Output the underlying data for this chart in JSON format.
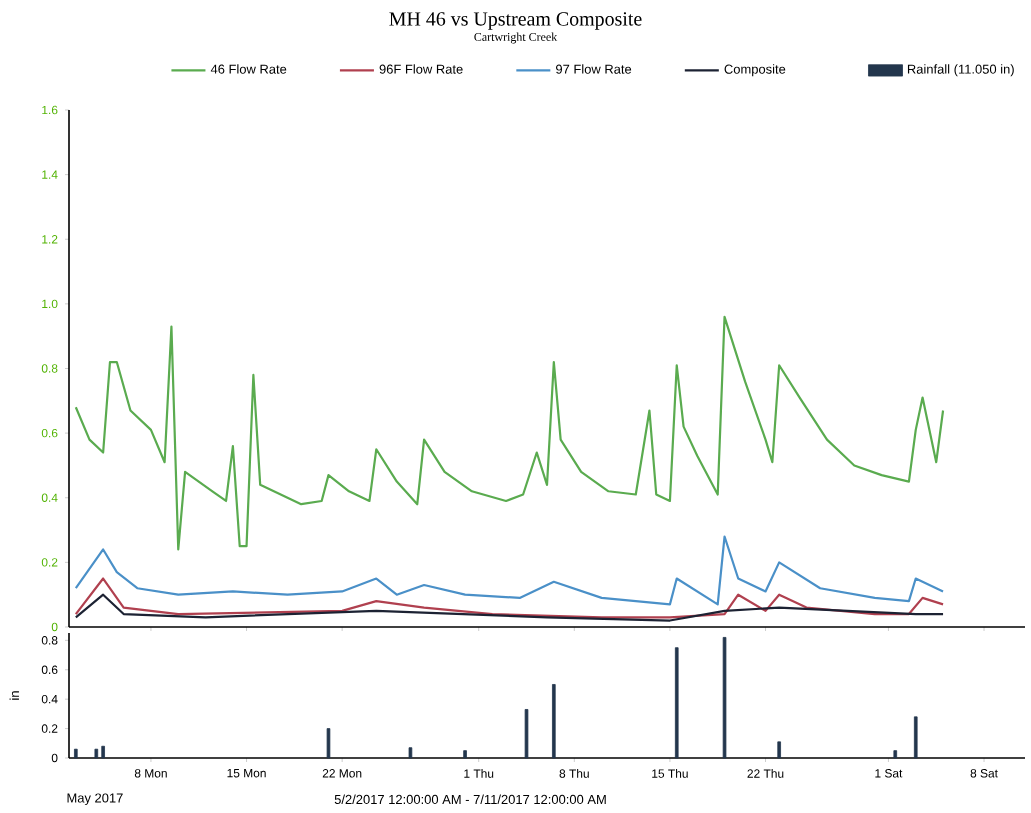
{
  "chart_data": [
    {
      "type": "line",
      "title": "MH 46 vs Upstream Composite",
      "subtitle": "Cartwright Creek",
      "legend": "top",
      "tick_labels": "y",
      "xlim": [
        "2017-05-02",
        "2017-07-11"
      ],
      "xticks": [
        {
          "value": "2017-05-08",
          "label": null
        },
        {
          "value": "2017-05-15",
          "label": null
        },
        {
          "value": "2017-05-22",
          "label": null
        },
        {
          "value": "2017-06-01",
          "label": null
        },
        {
          "value": "2017-06-08",
          "label": null
        },
        {
          "value": "2017-06-15",
          "label": null
        },
        {
          "value": "2017-06-22",
          "label": null
        },
        {
          "value": "2017-07-01",
          "label": null
        },
        {
          "value": "2017-07-08",
          "label": null
        }
      ],
      "ylim": [
        0,
        1.6
      ],
      "yticks": [
        0,
        0.2,
        0.4,
        0.6,
        0.8,
        {
          "value": 1,
          "label": "1.0"
        },
        1.2,
        1.4,
        1.6
      ],
      "series": [
        {
          "name": "46 Flow Rate",
          "color": "#5aab4f",
          "x": [
            "2017-05-02T12:00",
            "2017-05-03T12:00",
            "2017-05-04T12:00",
            "2017-05-05T00:00",
            "2017-05-05T12:00",
            "2017-05-06T12:00",
            "2017-05-08T00:00",
            "2017-05-09T00:00",
            "2017-05-09T12:00",
            "2017-05-10T00:00",
            "2017-05-10T12:00",
            "2017-05-12T12:00",
            "2017-05-13T12:00",
            "2017-05-14T00:00",
            "2017-05-14T12:00",
            "2017-05-15T00:00",
            "2017-05-15T12:00",
            "2017-05-16T00:00",
            "2017-05-17T12:00",
            "2017-05-19T00:00",
            "2017-05-20T12:00",
            "2017-05-21T00:00",
            "2017-05-22T12:00",
            "2017-05-24T00:00",
            "2017-05-24T12:00",
            "2017-05-26T00:00",
            "2017-05-27T12:00",
            "2017-05-28T00:00",
            "2017-05-29T12:00",
            "2017-05-31T12:00",
            "2017-06-03T00:00",
            "2017-06-04T06:00",
            "2017-06-05T06:00",
            "2017-06-06T00:00",
            "2017-06-06T12:00",
            "2017-06-07T00:00",
            "2017-06-08T12:00",
            "2017-06-10T12:00",
            "2017-06-12T12:00",
            "2017-06-13T12:00",
            "2017-06-14T00:00",
            "2017-06-15T00:00",
            "2017-06-15T12:00",
            "2017-06-16T00:00",
            "2017-06-17T00:00",
            "2017-06-18T12:00",
            "2017-06-19T00:00",
            "2017-06-20T12:00",
            "2017-06-22T00:00",
            "2017-06-22T12:00",
            "2017-06-23T00:00",
            "2017-06-24T12:00",
            "2017-06-26T12:00",
            "2017-06-28T12:00",
            "2017-06-30T12:00",
            "2017-07-02T12:00",
            "2017-07-03T00:00",
            "2017-07-03T12:00",
            "2017-07-04T00:00",
            "2017-07-04T12:00",
            "2017-07-05T00:00"
          ],
          "values": [
            0.68,
            0.58,
            0.54,
            0.82,
            0.82,
            0.67,
            0.61,
            0.51,
            0.93,
            0.24,
            0.48,
            0.42,
            0.39,
            0.56,
            0.25,
            0.25,
            0.78,
            0.44,
            0.41,
            0.38,
            0.39,
            0.47,
            0.42,
            0.39,
            0.55,
            0.45,
            0.38,
            0.58,
            0.48,
            0.42,
            0.39,
            0.41,
            0.54,
            0.44,
            0.82,
            0.58,
            0.48,
            0.42,
            0.41,
            0.67,
            0.41,
            0.39,
            0.81,
            0.62,
            0.53,
            0.41,
            0.96,
            0.76,
            0.58,
            0.51,
            0.81,
            0.71,
            0.58,
            0.5,
            0.47,
            0.45,
            0.61,
            0.71,
            0.61,
            0.51,
            0.67
          ]
        },
        {
          "name": "96F Flow Rate",
          "color": "#b0404f",
          "x": [
            "2017-05-02T12:00",
            "2017-05-04T12:00",
            "2017-05-06T00:00",
            "2017-05-10T00:00",
            "2017-05-22T00:00",
            "2017-05-24T12:00",
            "2017-05-28T00:00",
            "2017-06-02T00:00",
            "2017-06-10T00:00",
            "2017-06-15T00:00",
            "2017-06-19T00:00",
            "2017-06-20T00:00",
            "2017-06-22T00:00",
            "2017-06-23T00:00",
            "2017-06-25T00:00",
            "2017-06-30T00:00",
            "2017-07-02T12:00",
            "2017-07-03T12:00",
            "2017-07-05T00:00"
          ],
          "values": [
            0.04,
            0.15,
            0.06,
            0.04,
            0.05,
            0.08,
            0.06,
            0.04,
            0.03,
            0.03,
            0.04,
            0.1,
            0.05,
            0.1,
            0.06,
            0.04,
            0.04,
            0.09,
            0.07
          ]
        },
        {
          "name": "97 Flow Rate",
          "color": "#4a90c8",
          "x": [
            "2017-05-02T12:00",
            "2017-05-04T12:00",
            "2017-05-05T12:00",
            "2017-05-07T00:00",
            "2017-05-10T00:00",
            "2017-05-14T00:00",
            "2017-05-18T00:00",
            "2017-05-22T00:00",
            "2017-05-24T12:00",
            "2017-05-26T00:00",
            "2017-05-28T00:00",
            "2017-05-31T00:00",
            "2017-06-04T00:00",
            "2017-06-06T12:00",
            "2017-06-10T00:00",
            "2017-06-15T00:00",
            "2017-06-15T12:00",
            "2017-06-18T12:00",
            "2017-06-19T00:00",
            "2017-06-20T00:00",
            "2017-06-22T00:00",
            "2017-06-23T00:00",
            "2017-06-26T00:00",
            "2017-06-30T00:00",
            "2017-07-02T12:00",
            "2017-07-03T00:00",
            "2017-07-05T00:00"
          ],
          "values": [
            0.12,
            0.24,
            0.17,
            0.12,
            0.1,
            0.11,
            0.1,
            0.11,
            0.15,
            0.1,
            0.13,
            0.1,
            0.09,
            0.14,
            0.09,
            0.07,
            0.15,
            0.07,
            0.28,
            0.15,
            0.11,
            0.2,
            0.12,
            0.09,
            0.08,
            0.15,
            0.11
          ]
        },
        {
          "name": "Composite",
          "color": "#1c2233",
          "x": [
            "2017-05-02T12:00",
            "2017-05-04T12:00",
            "2017-05-06T00:00",
            "2017-05-12T00:00",
            "2017-05-24T12:00",
            "2017-06-06T00:00",
            "2017-06-15T00:00",
            "2017-06-19T00:00",
            "2017-06-23T00:00",
            "2017-07-03T00:00",
            "2017-07-05T00:00"
          ],
          "values": [
            0.03,
            0.1,
            0.04,
            0.03,
            0.05,
            0.03,
            0.02,
            0.05,
            0.06,
            0.04,
            0.04
          ]
        }
      ]
    },
    {
      "type": "bar",
      "ylabel": "in",
      "legend": "top right",
      "xlim": [
        "2017-05-02",
        "2017-07-11"
      ],
      "xticks": [
        {
          "value": "2017-05-08",
          "label": "8 Mon"
        },
        {
          "value": "2017-05-15",
          "label": "15 Mon"
        },
        {
          "value": "2017-05-22",
          "label": "22 Mon"
        },
        {
          "value": "2017-06-01",
          "label": "1 Thu"
        },
        {
          "value": "2017-06-08",
          "label": "8 Thu"
        },
        {
          "value": "2017-06-15",
          "label": "15 Thu"
        },
        {
          "value": "2017-06-22",
          "label": "22 Thu"
        },
        {
          "value": "2017-07-01",
          "label": "1 Sat"
        },
        {
          "value": "2017-07-08",
          "label": "8 Sat"
        }
      ],
      "ylim": [
        0,
        0.85
      ],
      "yticks": [
        0,
        0.2,
        0.4,
        0.6,
        0.8
      ],
      "annotations": [
        "May 2017",
        "5/2/2017 12:00:00 AM - 7/11/2017 12:00:00 AM"
      ],
      "series": [
        {
          "name": "Rainfall (11.050 in)",
          "color": "#23364d",
          "x": [
            "2017-05-02T12:00",
            "2017-05-04T00:00",
            "2017-05-04T12:00",
            "2017-05-21T00:00",
            "2017-05-27T00:00",
            "2017-05-31T00:00",
            "2017-06-04T12:00",
            "2017-06-06T12:00",
            "2017-06-15T12:00",
            "2017-06-19T00:00",
            "2017-06-23T00:00",
            "2017-07-01T12:00",
            "2017-07-03T00:00"
          ],
          "values": [
            0.06,
            0.06,
            0.08,
            0.2,
            0.07,
            0.05,
            0.33,
            0.5,
            0.75,
            0.82,
            0.11,
            0.05,
            0.28
          ]
        }
      ]
    }
  ]
}
